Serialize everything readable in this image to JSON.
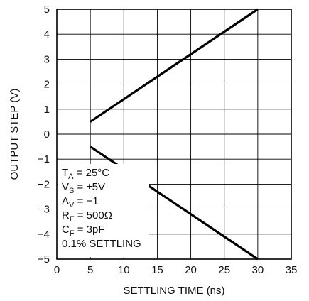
{
  "chart_data": {
    "type": "line",
    "title": "",
    "xlabel": "SETTLING TIME (ns)",
    "ylabel": "OUTPUT STEP (V)",
    "xlim": [
      0,
      35
    ],
    "ylim": [
      -5,
      5
    ],
    "xticks": [
      "0",
      "5",
      "10",
      "15",
      "20",
      "25",
      "30",
      "35"
    ],
    "yticks": [
      "5",
      "4",
      "3",
      "2",
      "1",
      "0",
      "−1",
      "−2",
      "−3",
      "−4",
      "−5"
    ],
    "grid": true,
    "series": [
      {
        "x": [
          5,
          30
        ],
        "y": [
          0.5,
          5
        ]
      },
      {
        "x": [
          5,
          30
        ],
        "y": [
          -0.5,
          -5
        ]
      }
    ],
    "annotations": [
      {
        "main": "T",
        "sub": "A",
        "rest": " = 25°C"
      },
      {
        "main": "V",
        "sub": "S",
        "rest": " = ±5V"
      },
      {
        "main": "A",
        "sub": "V",
        "rest": " = −1"
      },
      {
        "main": "R",
        "sub": "F",
        "rest": " = 500Ω"
      },
      {
        "main": "C",
        "sub": "F",
        "rest": " = 3pF"
      },
      {
        "main": "0.1% SETTLING",
        "sub": "",
        "rest": ""
      }
    ]
  }
}
